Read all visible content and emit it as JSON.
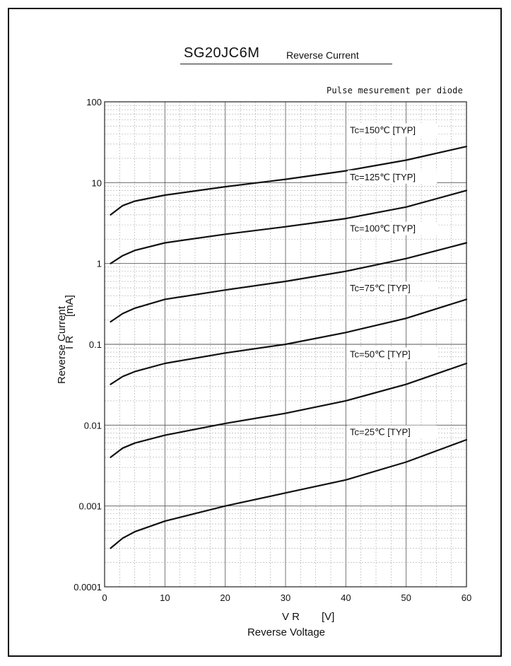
{
  "chart_data": {
    "type": "line",
    "title": "SG20JC6M",
    "subtitle": "Reverse Current",
    "note": "Pulse mesurement per diode",
    "xlabel_symbol": "V R",
    "xlabel_unit": "[V]",
    "xlabel": "Reverse Voltage",
    "ylabel_symbol": "I R",
    "ylabel_unit": "[mA]",
    "ylabel": "Reverse Current",
    "xlim": [
      0,
      60
    ],
    "ylim": [
      0.0001,
      100
    ],
    "yscale": "log",
    "grid": true,
    "x_ticks": [
      "0",
      "10",
      "20",
      "30",
      "40",
      "50",
      "60"
    ],
    "y_ticks": [
      "0.0001",
      "0.001",
      "0.01",
      "0.1",
      "1",
      "10",
      "100"
    ],
    "series": [
      {
        "name": "Tc=150℃  [TYP]",
        "x": [
          1,
          3,
          5,
          10,
          20,
          30,
          40,
          50,
          60
        ],
        "y": [
          4.0,
          5.2,
          5.9,
          7.0,
          8.9,
          11.0,
          14.0,
          19.0,
          28.0
        ]
      },
      {
        "name": "Tc=125℃  [TYP]",
        "x": [
          1,
          3,
          5,
          10,
          20,
          30,
          40,
          50,
          60
        ],
        "y": [
          1.0,
          1.25,
          1.45,
          1.8,
          2.3,
          2.85,
          3.6,
          5.0,
          8.0
        ]
      },
      {
        "name": "Tc=100℃  [TYP]",
        "x": [
          1,
          3,
          5,
          10,
          20,
          30,
          40,
          50,
          60
        ],
        "y": [
          0.19,
          0.24,
          0.28,
          0.36,
          0.47,
          0.6,
          0.8,
          1.15,
          1.8
        ]
      },
      {
        "name": "Tc=75℃  [TYP]",
        "x": [
          1,
          3,
          5,
          10,
          20,
          30,
          40,
          50,
          60
        ],
        "y": [
          0.032,
          0.04,
          0.046,
          0.058,
          0.078,
          0.1,
          0.14,
          0.21,
          0.36
        ]
      },
      {
        "name": "Tc=50℃  [TYP]",
        "x": [
          1,
          3,
          5,
          10,
          20,
          30,
          40,
          50,
          60
        ],
        "y": [
          0.004,
          0.0052,
          0.006,
          0.0075,
          0.0105,
          0.014,
          0.02,
          0.032,
          0.058
        ]
      },
      {
        "name": "Tc=25℃  [TYP]",
        "x": [
          1,
          3,
          5,
          10,
          20,
          30,
          40,
          50,
          60
        ],
        "y": [
          0.0003,
          0.0004,
          0.00048,
          0.00065,
          0.001,
          0.00145,
          0.0021,
          0.0035,
          0.0066
        ]
      }
    ]
  }
}
